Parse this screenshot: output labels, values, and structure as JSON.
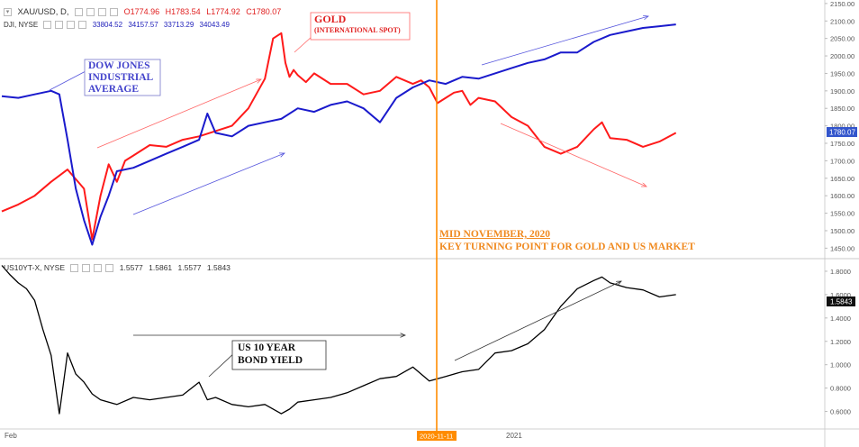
{
  "legend": {
    "gold_symbol": "XAU/USD, D,",
    "gold_o": "O1774.96",
    "gold_h": "H1783.54",
    "gold_l": "L1774.92",
    "gold_c": "C1780.07",
    "dji_symbol": "DJI, NYSE",
    "dji_o": "33804.52",
    "dji_h": "34157.57",
    "dji_l": "33713.29",
    "dji_c": "34043.49",
    "bond_symbol": "US10YT-X, NYSE",
    "bond_o": "1.5577",
    "bond_h": "1.5861",
    "bond_l": "1.5577",
    "bond_c": "1.5843"
  },
  "annotations": {
    "dow": [
      "DOW JONES",
      "INDUSTRIAL",
      "AVERAGE"
    ],
    "gold": "GOLD",
    "gold_sub": "(INTERNATIONAL SPOT)",
    "mid_nov": "MID NOVEMBER, 2020",
    "key_turn": "KEY TURNING POINT FOR GOLD AND US MARKET",
    "bond": [
      "US 10 YEAR",
      "BOND YIELD"
    ]
  },
  "colors": {
    "gold": "#ff1a1a",
    "dow": "#1a1acc",
    "bond": "#000000",
    "marker": "#ff8c00",
    "price_tag": "#3355cc"
  },
  "chart_data": [
    {
      "type": "line",
      "series": [
        {
          "name": "XAU/USD",
          "x": [
            0,
            0.02,
            0.04,
            0.06,
            0.08,
            0.1,
            0.11,
            0.12,
            0.13,
            0.14,
            0.15,
            0.16,
            0.18,
            0.2,
            0.22,
            0.24,
            0.26,
            0.28,
            0.3,
            0.32,
            0.33,
            0.34,
            0.345,
            0.35,
            0.355,
            0.36,
            0.37,
            0.38,
            0.4,
            0.42,
            0.44,
            0.46,
            0.48,
            0.5,
            0.51,
            0.52,
            0.53,
            0.54,
            0.55,
            0.56,
            0.57,
            0.58,
            0.6,
            0.62,
            0.64,
            0.66,
            0.68,
            0.7,
            0.72,
            0.73,
            0.74,
            0.76,
            0.78,
            0.8,
            0.82
          ],
          "values": [
            1555,
            1575,
            1600,
            1640,
            1675,
            1620,
            1475,
            1600,
            1690,
            1640,
            1700,
            1715,
            1745,
            1740,
            1760,
            1770,
            1785,
            1800,
            1850,
            1935,
            2050,
            2065,
            1980,
            1940,
            1960,
            1945,
            1925,
            1950,
            1920,
            1920,
            1890,
            1900,
            1940,
            1920,
            1930,
            1910,
            1865,
            1880,
            1895,
            1900,
            1860,
            1880,
            1870,
            1825,
            1800,
            1740,
            1720,
            1740,
            1790,
            1810,
            1765,
            1760,
            1740,
            1755,
            1780
          ]
        },
        {
          "name": "DJI",
          "x": [
            0,
            0.02,
            0.04,
            0.06,
            0.07,
            0.08,
            0.09,
            0.1,
            0.11,
            0.12,
            0.13,
            0.14,
            0.16,
            0.18,
            0.2,
            0.22,
            0.24,
            0.25,
            0.26,
            0.28,
            0.3,
            0.32,
            0.34,
            0.36,
            0.38,
            0.4,
            0.42,
            0.44,
            0.46,
            0.48,
            0.5,
            0.52,
            0.54,
            0.56,
            0.58,
            0.6,
            0.62,
            0.64,
            0.66,
            0.68,
            0.7,
            0.72,
            0.74,
            0.76,
            0.78,
            0.8,
            0.82
          ],
          "values": [
            1885,
            1880,
            1890,
            1900,
            1890,
            1760,
            1620,
            1530,
            1460,
            1540,
            1600,
            1670,
            1680,
            1700,
            1720,
            1740,
            1760,
            1835,
            1780,
            1770,
            1800,
            1810,
            1820,
            1850,
            1840,
            1860,
            1870,
            1850,
            1810,
            1880,
            1910,
            1930,
            1920,
            1940,
            1935,
            1950,
            1965,
            1980,
            1990,
            2010,
            2010,
            2040,
            2060,
            2070,
            2080,
            2085,
            2090
          ]
        }
      ],
      "ylim": [
        1420,
        2160
      ],
      "y_ticks": [
        "2150.00",
        "2100.00",
        "2050.00",
        "2000.00",
        "1950.00",
        "1900.00",
        "1850.00",
        "1800.00",
        "1750.00",
        "1700.00",
        "1650.00",
        "1600.00",
        "1550.00",
        "1500.00",
        "1450.00"
      ],
      "last_value_label": "1780.07"
    },
    {
      "type": "line",
      "series": [
        {
          "name": "US10YT-X",
          "x": [
            0,
            0.01,
            0.02,
            0.03,
            0.04,
            0.05,
            0.06,
            0.07,
            0.08,
            0.09,
            0.1,
            0.11,
            0.12,
            0.14,
            0.16,
            0.18,
            0.2,
            0.22,
            0.24,
            0.25,
            0.26,
            0.28,
            0.3,
            0.32,
            0.34,
            0.35,
            0.36,
            0.38,
            0.4,
            0.42,
            0.44,
            0.46,
            0.48,
            0.5,
            0.52,
            0.54,
            0.56,
            0.58,
            0.6,
            0.62,
            0.64,
            0.66,
            0.68,
            0.7,
            0.72,
            0.73,
            0.74,
            0.76,
            0.78,
            0.8,
            0.82
          ],
          "values": [
            1.85,
            1.77,
            1.7,
            1.65,
            1.55,
            1.3,
            1.08,
            0.58,
            1.1,
            0.92,
            0.85,
            0.75,
            0.7,
            0.66,
            0.72,
            0.7,
            0.72,
            0.74,
            0.85,
            0.7,
            0.72,
            0.66,
            0.64,
            0.66,
            0.58,
            0.62,
            0.68,
            0.7,
            0.72,
            0.76,
            0.82,
            0.88,
            0.9,
            0.98,
            0.86,
            0.9,
            0.94,
            0.96,
            1.1,
            1.12,
            1.18,
            1.3,
            1.5,
            1.65,
            1.72,
            1.75,
            1.7,
            1.66,
            1.64,
            1.58,
            1.6
          ]
        }
      ],
      "ylim": [
        0.45,
        1.9
      ],
      "y_ticks": [
        "1.8000",
        "1.6000",
        "1.4000",
        "1.2000",
        "1.0000",
        "0.8000",
        "0.6000"
      ],
      "last_value_label": "1.5843",
      "x_ticks": [
        "Feb",
        "2020-11-11",
        "2021"
      ]
    }
  ]
}
